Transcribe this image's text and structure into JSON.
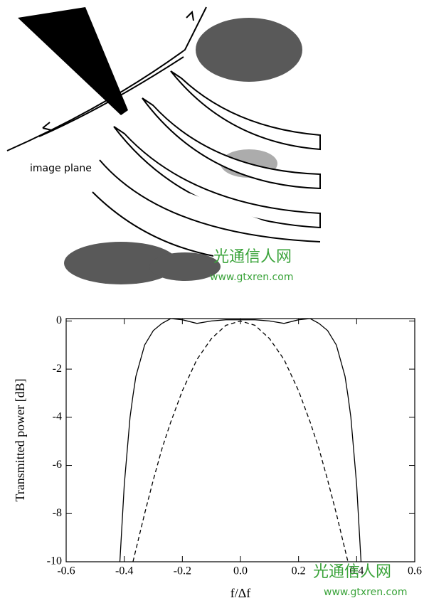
{
  "diagram": {
    "label": "image plane",
    "watermark": {
      "title": "光通信人网",
      "url": "www.gtxren.com"
    }
  },
  "chart_data": {
    "type": "line",
    "x_label": "f/Δf",
    "y_label": "Transmitted power [dB]",
    "x": [
      -0.42,
      -0.415,
      -0.4,
      -0.38,
      -0.37,
      -0.36,
      -0.33,
      -0.3,
      -0.27,
      -0.24,
      -0.2,
      -0.15,
      -0.1,
      -0.05,
      0,
      0.05,
      0.1,
      0.15,
      0.2,
      0.24,
      0.27,
      0.3,
      0.33,
      0.36,
      0.37,
      0.38,
      0.4,
      0.415,
      0.42
    ],
    "series": [
      {
        "color": "#000000",
        "dash": false,
        "values": [
          null,
          -10,
          -6.8,
          -4.0,
          -3.1,
          -2.3,
          -1.0,
          -0.4,
          -0.1,
          0.1,
          0.05,
          -0.1,
          0,
          0.05,
          0.05,
          0.05,
          0,
          -0.1,
          0.05,
          0.1,
          -0.1,
          -0.4,
          -1.0,
          -2.3,
          -3.1,
          -4.0,
          -6.8,
          -10,
          null
        ]
      },
      {
        "color": "#000000",
        "dash": true,
        "values": [
          null,
          null,
          null,
          null,
          -10,
          -9.5,
          -8.0,
          -6.6,
          -5.3,
          -4.2,
          -2.9,
          -1.6,
          -0.73,
          -0.18,
          0,
          -0.18,
          -0.73,
          -1.6,
          -2.9,
          -4.2,
          -5.3,
          -6.6,
          -8.0,
          -9.5,
          -10,
          null,
          null,
          null,
          null
        ]
      }
    ],
    "xlim": [
      -0.6,
      0.6
    ],
    "ylim": [
      -10,
      0.1
    ],
    "xticks": [
      -0.6,
      -0.4,
      -0.2,
      {
        "value": 0,
        "label": "0.0"
      },
      0.2,
      0.4,
      0.6
    ],
    "yticks": [
      0,
      -2,
      -4,
      -6,
      -8,
      -10
    ]
  }
}
